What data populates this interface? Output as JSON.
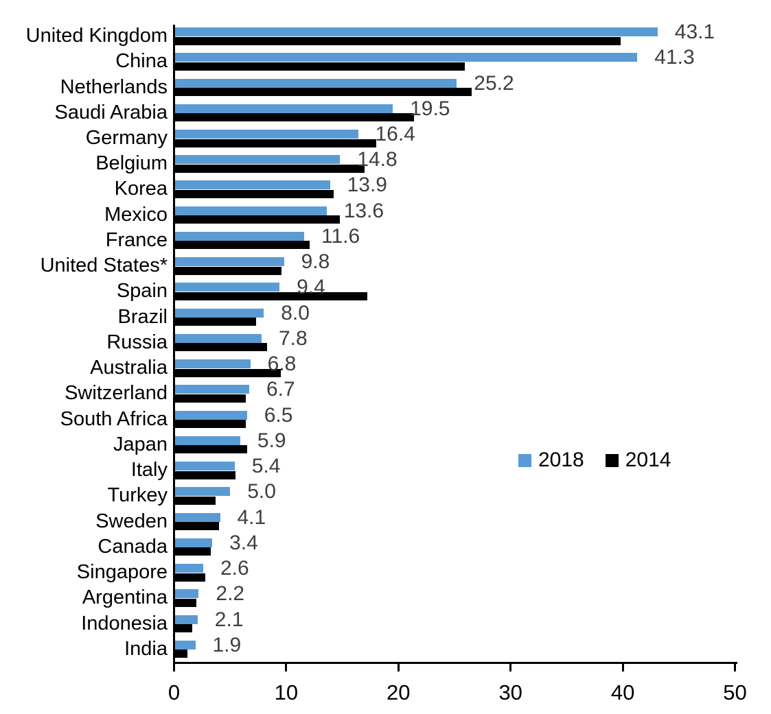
{
  "chart_data": {
    "type": "bar",
    "orientation": "horizontal",
    "title": "",
    "xlabel": "",
    "ylabel": "",
    "xlim": [
      0,
      50
    ],
    "x_ticks": [
      "0",
      "10",
      "20",
      "30",
      "40",
      "50"
    ],
    "grid": false,
    "legend_position": "middle-right",
    "categories": [
      "United Kingdom",
      "China",
      "Netherlands",
      "Saudi Arabia",
      "Germany",
      "Belgium",
      "Korea",
      "Mexico",
      "France",
      "United States*",
      "Spain",
      "Brazil",
      "Russia",
      "Australia",
      "Switzerland",
      "South Africa",
      "Japan",
      "Italy",
      "Turkey",
      "Sweden",
      "Canada",
      "Singapore",
      "Argentina",
      "Indonesia",
      "India"
    ],
    "series": [
      {
        "name": "2018",
        "color": "#5B9BD5",
        "values": [
          43.1,
          41.3,
          25.2,
          19.5,
          16.4,
          14.8,
          13.9,
          13.6,
          11.6,
          9.8,
          9.4,
          8.0,
          7.8,
          6.8,
          6.7,
          6.5,
          5.9,
          5.4,
          5.0,
          4.1,
          3.4,
          2.6,
          2.2,
          2.1,
          1.9
        ]
      },
      {
        "name": "2014",
        "color": "#000000",
        "values": [
          39.8,
          25.9,
          26.5,
          21.4,
          18.0,
          17.0,
          14.2,
          14.8,
          12.1,
          9.6,
          17.2,
          7.3,
          8.3,
          9.5,
          6.4,
          6.4,
          6.5,
          5.5,
          3.7,
          4.0,
          3.3,
          2.8,
          2.0,
          1.6,
          1.2
        ]
      }
    ],
    "data_labels": {
      "labeled_series": "2018",
      "color": "#3F3F3F",
      "values": [
        "43.1",
        "41.3",
        "25.2",
        "19.5",
        "16.4",
        "14.8",
        "13.9",
        "13.6",
        "11.6",
        "9.8",
        "9.4",
        "8.0",
        "7.8",
        "6.8",
        "6.7",
        "6.5",
        "5.9",
        "5.4",
        "5.0",
        "4.1",
        "3.4",
        "2.6",
        "2.2",
        "2.1",
        "1.9"
      ]
    }
  }
}
